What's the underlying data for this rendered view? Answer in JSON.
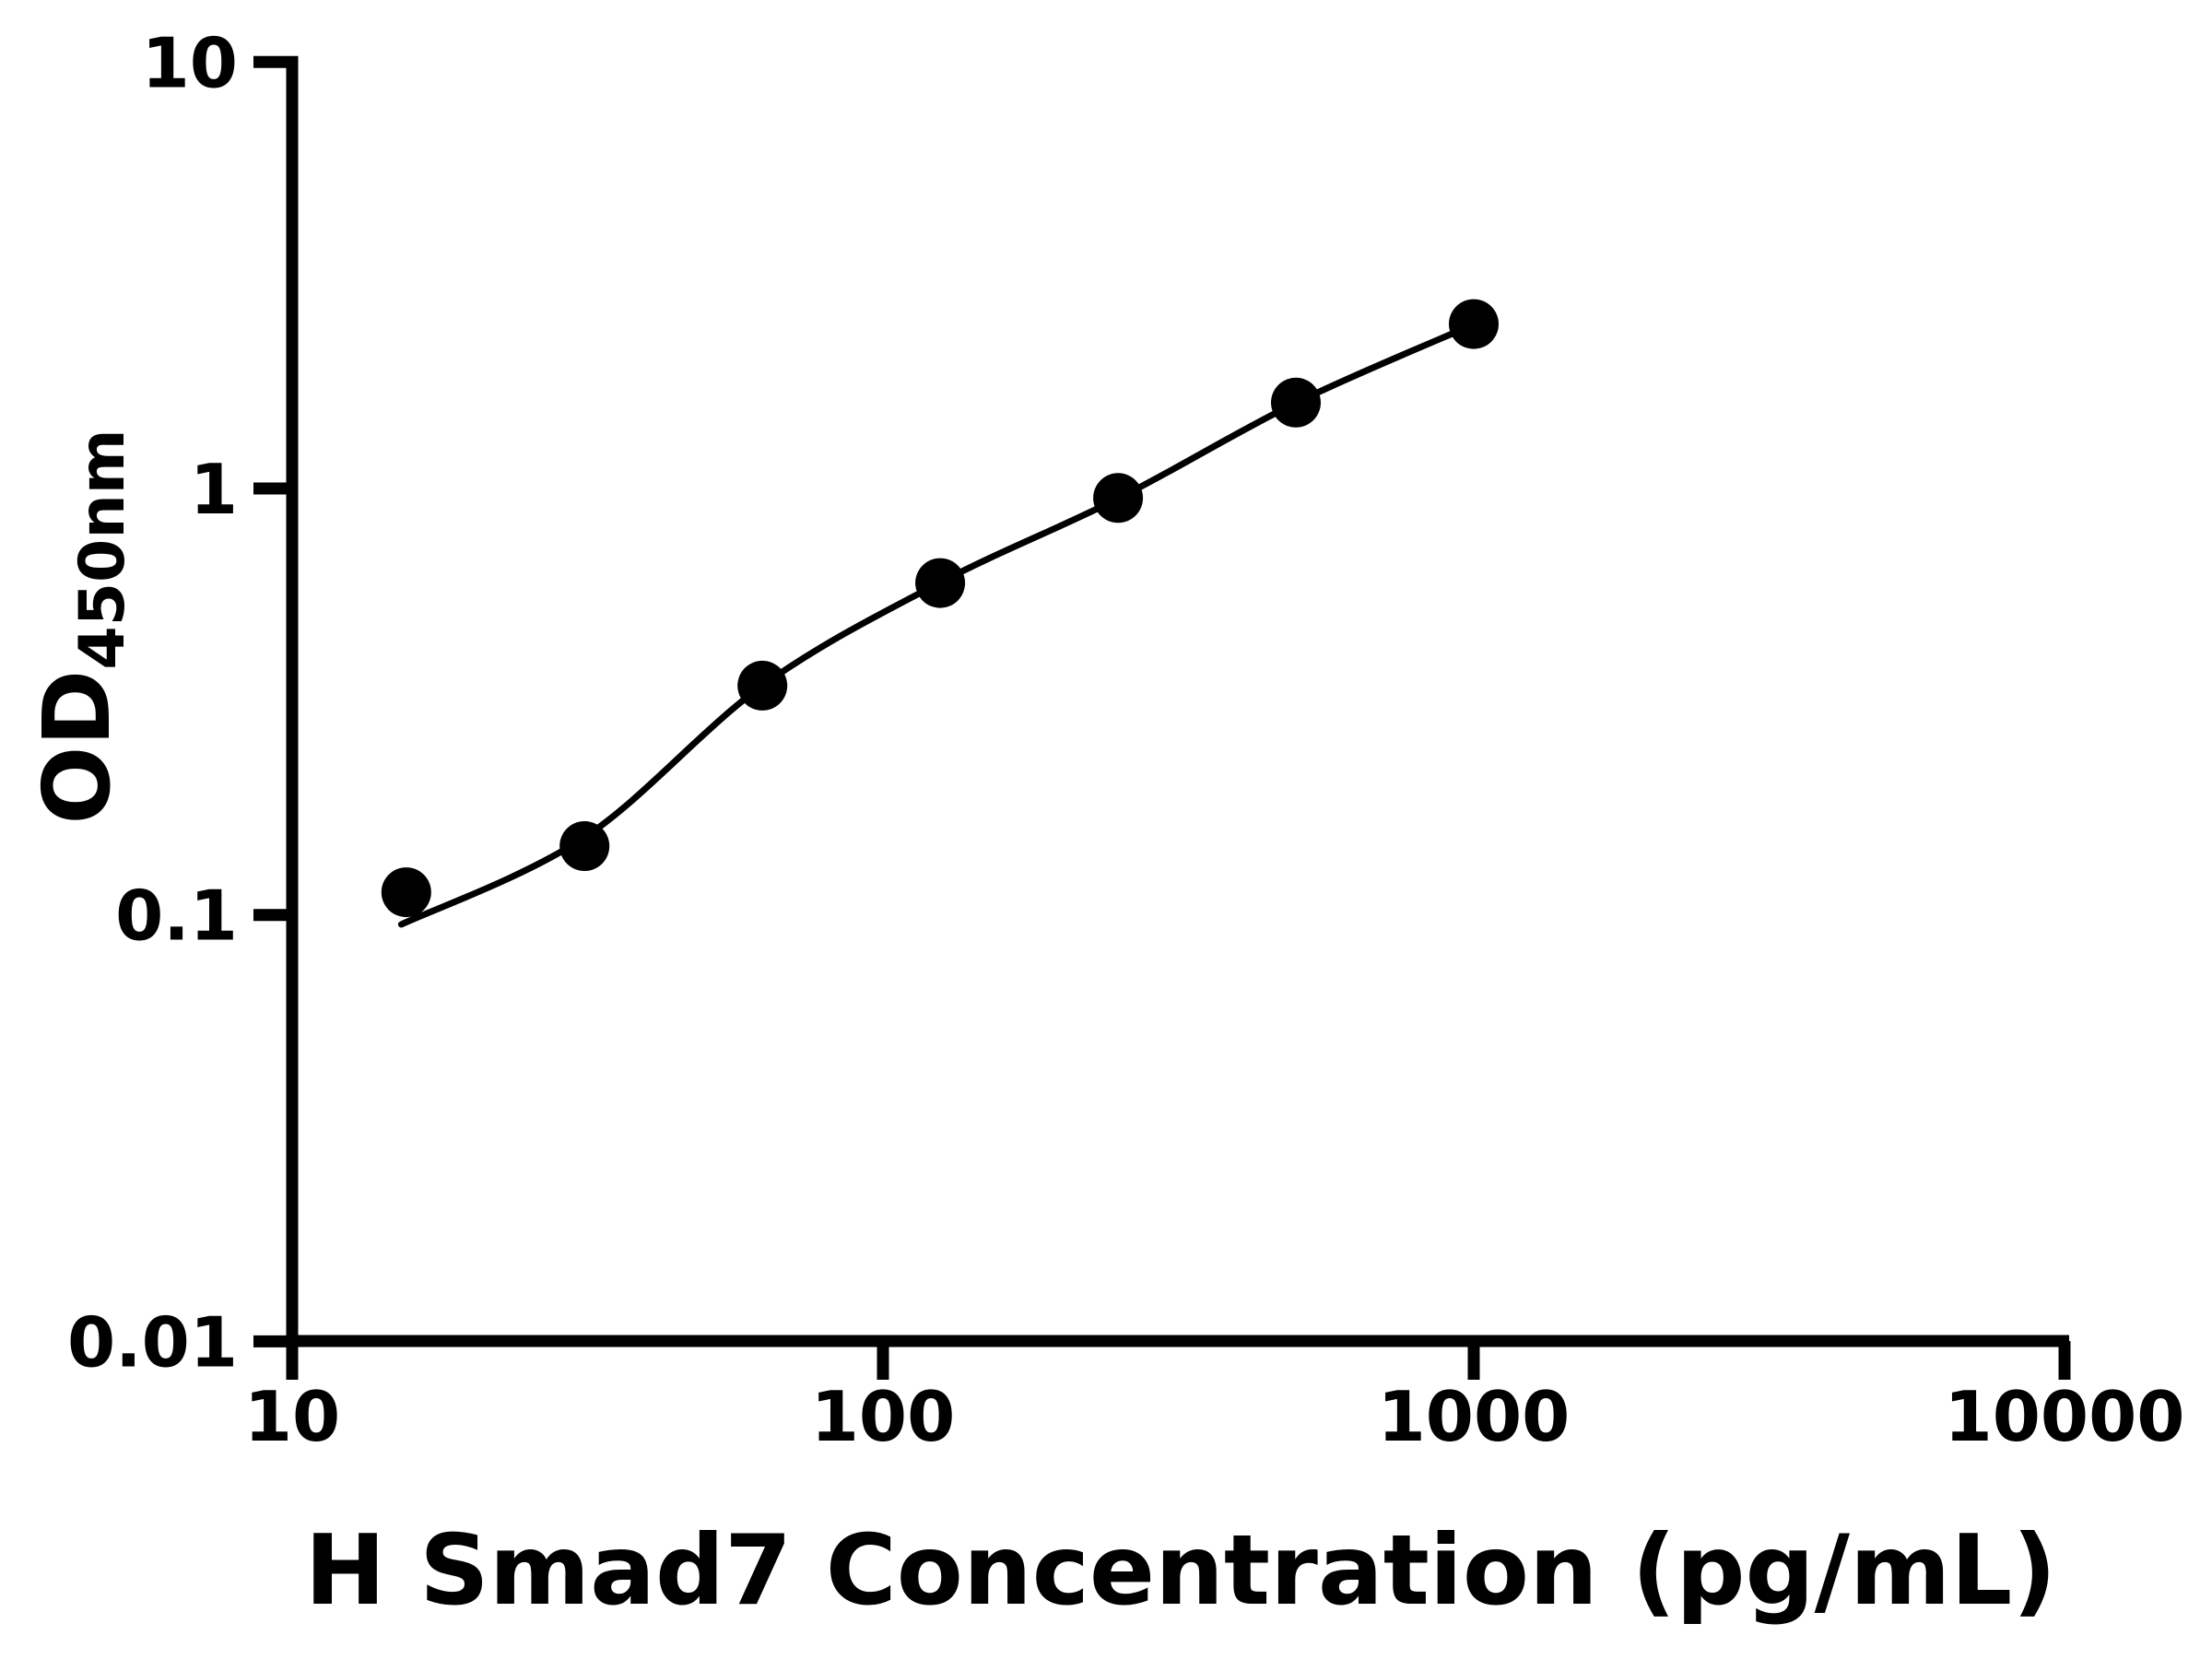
{
  "figure": {
    "background": "#ffffff",
    "ink_color": "#000000"
  },
  "chart_data": {
    "type": "scatter",
    "title": "",
    "xlabel": "H Smad7 Concentration (pg/mL)",
    "ylabel": "OD",
    "ylabel_subscript": "450nm",
    "x_scale": "log",
    "y_scale": "log",
    "xlim": [
      10,
      10000
    ],
    "ylim": [
      0.01,
      10
    ],
    "x_ticks": [
      10,
      100,
      1000,
      10000
    ],
    "x_tick_labels": [
      "10",
      "100",
      "1000",
      "10000"
    ],
    "y_ticks": [
      10,
      1,
      0.1,
      0.01
    ],
    "y_tick_labels": [
      "10",
      "1",
      "0.1",
      "0.01"
    ],
    "grid": false,
    "legend": "none",
    "series": [
      {
        "name": "standard-points",
        "type": "scatter",
        "marker": "filled-circle",
        "color": "#000000",
        "x": [
          15.6,
          31.25,
          62.5,
          125,
          250,
          500,
          1000
        ],
        "y": [
          0.113,
          0.145,
          0.345,
          0.6,
          0.95,
          1.59,
          2.43
        ]
      },
      {
        "name": "fit-curve",
        "type": "line",
        "color": "#000000",
        "x": [
          15.3,
          31.25,
          62.5,
          125,
          250,
          500,
          1000
        ],
        "y": [
          0.095,
          0.152,
          0.345,
          0.602,
          0.947,
          1.588,
          2.425
        ]
      }
    ]
  }
}
